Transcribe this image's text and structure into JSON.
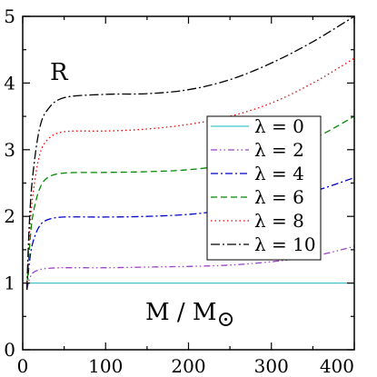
{
  "chart_data": {
    "type": "line",
    "xlim": [
      0,
      400
    ],
    "ylim": [
      0,
      5
    ],
    "x_ticks": [
      "0",
      "100",
      "200",
      "300",
      "400"
    ],
    "y_ticks": [
      "0",
      "1",
      "2",
      "3",
      "4",
      "5"
    ],
    "xlabel_main": "M / M",
    "xlabel_symbol": "⊙",
    "ylabel": "R",
    "grid": false,
    "legend_position": "right",
    "series": [
      {
        "name": "λ = 0",
        "color": "#40c8c8",
        "dash": "solid",
        "x": [
          5,
          400
        ],
        "y": [
          1.0,
          1.0
        ]
      },
      {
        "name": "λ = 2",
        "color": "#9b40c8",
        "dash": "dashdotdot",
        "x": [
          5,
          8,
          12,
          20,
          30,
          50,
          100,
          150,
          200,
          250,
          300,
          350,
          400
        ],
        "y": [
          0.9,
          1.05,
          1.15,
          1.2,
          1.22,
          1.23,
          1.23,
          1.24,
          1.25,
          1.27,
          1.32,
          1.4,
          1.55
        ]
      },
      {
        "name": "λ = 4",
        "color": "#0000cc",
        "dash": "dashdot",
        "x": [
          5,
          8,
          12,
          20,
          30,
          50,
          100,
          150,
          200,
          250,
          300,
          350,
          400
        ],
        "y": [
          0.9,
          1.3,
          1.6,
          1.85,
          1.95,
          1.99,
          1.99,
          2.0,
          2.03,
          2.1,
          2.2,
          2.37,
          2.58
        ]
      },
      {
        "name": "λ = 6",
        "color": "#008800",
        "dash": "dashed",
        "x": [
          5,
          8,
          12,
          20,
          30,
          50,
          100,
          150,
          200,
          250,
          300,
          350,
          400
        ],
        "y": [
          0.9,
          1.5,
          2.0,
          2.4,
          2.58,
          2.65,
          2.66,
          2.67,
          2.7,
          2.78,
          2.93,
          3.16,
          3.5
        ]
      },
      {
        "name": "λ = 8",
        "color": "#ee0000",
        "dash": "dotted",
        "x": [
          5,
          8,
          12,
          20,
          30,
          50,
          100,
          150,
          200,
          250,
          300,
          350,
          400
        ],
        "y": [
          0.9,
          1.7,
          2.3,
          2.9,
          3.15,
          3.27,
          3.28,
          3.31,
          3.38,
          3.5,
          3.7,
          4.0,
          4.37
        ]
      },
      {
        "name": "λ = 10",
        "color": "#000000",
        "dash": "dashdotlong",
        "x": [
          5,
          8,
          12,
          20,
          30,
          50,
          100,
          150,
          200,
          250,
          300,
          350,
          400
        ],
        "y": [
          0.9,
          1.9,
          2.6,
          3.3,
          3.6,
          3.78,
          3.83,
          3.84,
          3.9,
          4.05,
          4.3,
          4.62,
          5.0
        ]
      }
    ]
  }
}
